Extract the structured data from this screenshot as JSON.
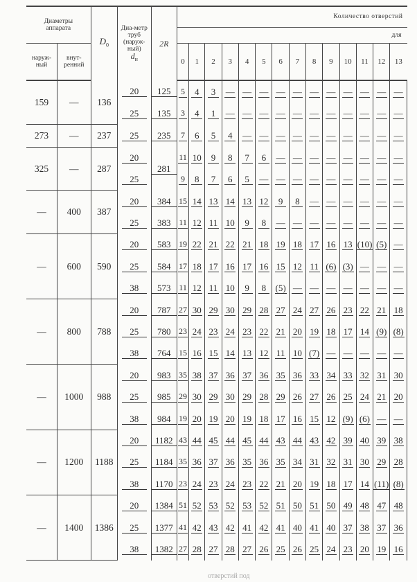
{
  "header": {
    "apparatus_diameters": "Диаметры аппарата",
    "outer": "наруж-ный",
    "inner": "внут-ренний",
    "d0": "D",
    "d0_sub": "0",
    "tube_diameter": "Диа-метр труб (наруж-ный)",
    "tube_symbol": "d",
    "tube_symbol_sub": "н",
    "two_r": "2R",
    "holes_count": "Количество отверстий",
    "for": "для",
    "columns": [
      "0",
      "1",
      "2",
      "3",
      "4",
      "5",
      "6",
      "7",
      "8",
      "9",
      "10",
      "11",
      "12",
      "13"
    ]
  },
  "groups": [
    {
      "outer": "159",
      "inner": "—",
      "d0": "136",
      "rows": [
        {
          "dn": "20",
          "two_r": "125",
          "counts": [
            "5",
            "4",
            "3",
            "—",
            "—",
            "—",
            "—",
            "—",
            "—",
            "—",
            "—",
            "—",
            "—",
            "—"
          ]
        },
        {
          "dn": "25",
          "two_r": "135",
          "counts": [
            "3",
            "4",
            "1",
            "—",
            "—",
            "—",
            "—",
            "—",
            "—",
            "—",
            "—",
            "—",
            "—",
            "—"
          ]
        }
      ]
    },
    {
      "outer": "273",
      "inner": "—",
      "d0": "237",
      "rows": [
        {
          "dn": "25",
          "two_r": "235",
          "counts": [
            "7",
            "6",
            "5",
            "4",
            "—",
            "—",
            "—",
            "—",
            "—",
            "—",
            "—",
            "—",
            "—",
            "—"
          ]
        }
      ]
    },
    {
      "outer": "325",
      "inner": "—",
      "d0": "287",
      "two_r_merged": "281",
      "rows": [
        {
          "dn": "20",
          "counts": [
            "11",
            "10",
            "9",
            "8",
            "7",
            "6",
            "—",
            "—",
            "—",
            "—",
            "—",
            "—",
            "—",
            "—"
          ]
        },
        {
          "dn": "25",
          "counts": [
            "9",
            "8",
            "7",
            "6",
            "5",
            "—",
            "—",
            "—",
            "—",
            "—",
            "—",
            "—",
            "—",
            "—"
          ]
        }
      ]
    },
    {
      "outer": "—",
      "inner": "400",
      "d0": "387",
      "rows": [
        {
          "dn": "20",
          "two_r": "384",
          "counts": [
            "15",
            "14",
            "13",
            "14",
            "13",
            "12",
            "9",
            "8",
            "—",
            "—",
            "—",
            "—",
            "—",
            "—"
          ]
        },
        {
          "dn": "25",
          "two_r": "383",
          "counts": [
            "11",
            "12",
            "11",
            "10",
            "9",
            "8",
            "—",
            "—",
            "—",
            "—",
            "—",
            "—",
            "—",
            "—"
          ]
        }
      ]
    },
    {
      "outer": "—",
      "inner": "600",
      "d0": "590",
      "rows": [
        {
          "dn": "20",
          "two_r": "583",
          "counts": [
            "19",
            "22",
            "21",
            "22",
            "21",
            "18",
            "19",
            "18",
            "17",
            "16",
            "13",
            "(10)",
            "(5)",
            "—"
          ]
        },
        {
          "dn": "25",
          "two_r": "584",
          "counts": [
            "17",
            "18",
            "17",
            "16",
            "17",
            "16",
            "15",
            "12",
            "11",
            "(6)",
            "(3)",
            "—",
            "—",
            "—"
          ]
        },
        {
          "dn": "38",
          "two_r": "573",
          "counts": [
            "11",
            "12",
            "11",
            "10",
            "9",
            "8",
            "(5)",
            "—",
            "—",
            "—",
            "—",
            "—",
            "—",
            "—"
          ]
        }
      ]
    },
    {
      "outer": "—",
      "inner": "800",
      "d0": "788",
      "rows": [
        {
          "dn": "20",
          "two_r": "787",
          "counts": [
            "27",
            "30",
            "29",
            "30",
            "29",
            "28",
            "27",
            "24",
            "27",
            "26",
            "23",
            "22",
            "21",
            "18"
          ]
        },
        {
          "dn": "25",
          "two_r": "780",
          "counts": [
            "23",
            "24",
            "23",
            "24",
            "23",
            "22",
            "21",
            "20",
            "19",
            "18",
            "17",
            "14",
            "(9)",
            "(8)"
          ]
        },
        {
          "dn": "38",
          "two_r": "764",
          "counts": [
            "15",
            "16",
            "15",
            "14",
            "13",
            "12",
            "11",
            "10",
            "(7)",
            "—",
            "—",
            "—",
            "—",
            "—"
          ]
        }
      ]
    },
    {
      "outer": "—",
      "inner": "1000",
      "d0": "988",
      "rows": [
        {
          "dn": "20",
          "two_r": "983",
          "counts": [
            "35",
            "38",
            "37",
            "36",
            "37",
            "36",
            "35",
            "36",
            "33",
            "34",
            "33",
            "32",
            "31",
            "30"
          ]
        },
        {
          "dn": "25",
          "two_r": "985",
          "counts": [
            "29",
            "30",
            "29",
            "30",
            "29",
            "28",
            "29",
            "26",
            "27",
            "26",
            "25",
            "24",
            "21",
            "20"
          ]
        },
        {
          "dn": "38",
          "two_r": "984",
          "counts": [
            "19",
            "20",
            "19",
            "20",
            "19",
            "18",
            "17",
            "16",
            "15",
            "12",
            "(9)",
            "(6)",
            "—",
            "—"
          ]
        }
      ]
    },
    {
      "outer": "—",
      "inner": "1200",
      "d0": "1188",
      "rows": [
        {
          "dn": "20",
          "two_r": "1182",
          "counts": [
            "43",
            "44",
            "45",
            "44",
            "45",
            "44",
            "43",
            "44",
            "43",
            "42",
            "39",
            "40",
            "39",
            "38"
          ]
        },
        {
          "dn": "25",
          "two_r": "1184",
          "counts": [
            "35",
            "36",
            "37",
            "36",
            "35",
            "36",
            "35",
            "34",
            "31",
            "32",
            "31",
            "30",
            "29",
            "28"
          ]
        },
        {
          "dn": "38",
          "two_r": "1170",
          "counts": [
            "23",
            "24",
            "23",
            "24",
            "23",
            "22",
            "21",
            "20",
            "19",
            "18",
            "17",
            "14",
            "(11)",
            "(8)"
          ]
        }
      ]
    },
    {
      "outer": "—",
      "inner": "1400",
      "d0": "1386",
      "rows": [
        {
          "dn": "20",
          "two_r": "1384",
          "counts": [
            "51",
            "52",
            "53",
            "52",
            "53",
            "52",
            "51",
            "50",
            "51",
            "50",
            "49",
            "48",
            "47",
            "48"
          ]
        },
        {
          "dn": "25",
          "two_r": "1377",
          "counts": [
            "41",
            "42",
            "43",
            "42",
            "41",
            "42",
            "41",
            "40",
            "41",
            "40",
            "37",
            "38",
            "37",
            "36"
          ]
        },
        {
          "dn": "38",
          "two_r": "1382",
          "counts": [
            "27",
            "28",
            "27",
            "28",
            "27",
            "26",
            "25",
            "26",
            "25",
            "24",
            "23",
            "20",
            "19",
            "16"
          ]
        }
      ]
    }
  ],
  "footer_fragment": "отверстий под"
}
